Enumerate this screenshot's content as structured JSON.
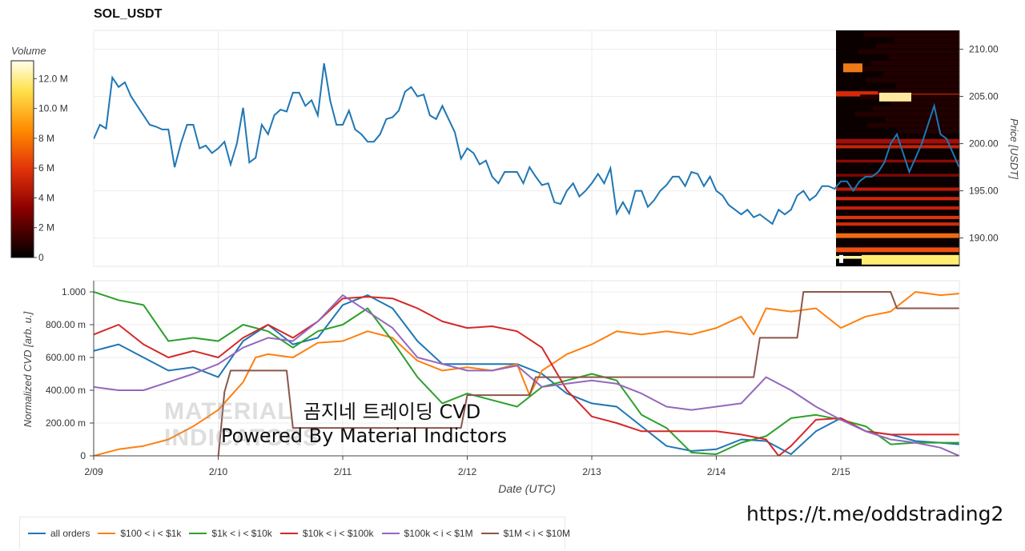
{
  "title": "SOL_USDT",
  "colorbar": {
    "label": "Volume",
    "ticks": [
      {
        "label": "12.0 M",
        "value": 12
      },
      {
        "label": "10.0 M",
        "value": 10
      },
      {
        "label": "8 M",
        "value": 8
      },
      {
        "label": "6 M",
        "value": 6
      },
      {
        "label": "4 M",
        "value": 4
      },
      {
        "label": "2 M",
        "value": 2
      },
      {
        "label": "0",
        "value": 0
      }
    ],
    "range": [
      0,
      13.2
    ]
  },
  "watermark": {
    "line1": "곰지네 트레이딩 CVD",
    "line2": "Powered By Material Indictors",
    "brand_line1": "MATERIAL",
    "brand_line2": "INDICATORS"
  },
  "link": "https://t.me/oddstrading2",
  "colors": {
    "all_orders": "#1f77b4",
    "s100_1k": "#ff7f0e",
    "s1k_10k": "#2ca02c",
    "s10k_100k": "#d62728",
    "s100k_1m": "#9467bd",
    "s1m_10m": "#8c564b"
  },
  "chart_data": [
    {
      "type": "line",
      "ylabel": "Price [USDT]",
      "ylim": [
        187,
        212
      ],
      "y_ticks": [
        "190.00",
        "195.00",
        "200.00",
        "205.00",
        "210.00"
      ],
      "y_tick_values": [
        190,
        195,
        200,
        205,
        210
      ],
      "x_day_range": [
        9,
        16
      ],
      "series": [
        {
          "x": [
            9.0,
            9.05,
            9.1,
            9.15,
            9.2,
            9.25,
            9.3,
            9.35,
            9.4,
            9.45,
            9.5,
            9.55,
            9.6,
            9.65,
            9.7,
            9.75,
            9.8,
            9.85,
            9.9,
            9.95,
            10.0,
            10.05,
            10.1,
            10.15,
            10.2,
            10.25,
            10.3,
            10.35,
            10.4,
            10.45,
            10.5,
            10.55,
            10.6,
            10.65,
            10.7,
            10.75,
            10.8,
            10.85,
            10.9,
            10.95,
            11.0,
            11.05,
            11.1,
            11.15,
            11.2,
            11.25,
            11.3,
            11.35,
            11.4,
            11.45,
            11.5,
            11.55,
            11.6,
            11.65,
            11.7,
            11.75,
            11.8,
            11.85,
            11.9,
            11.95,
            12.0,
            12.05,
            12.1,
            12.15,
            12.2,
            12.25,
            12.3,
            12.35,
            12.4,
            12.45,
            12.5,
            12.55,
            12.6,
            12.65,
            12.7,
            12.75,
            12.8,
            12.85,
            12.9,
            12.95,
            13.0,
            13.05,
            13.1,
            13.15,
            13.2,
            13.25,
            13.3,
            13.35,
            13.4,
            13.45,
            13.5,
            13.55,
            13.6,
            13.65,
            13.7,
            13.75,
            13.8,
            13.85,
            13.9,
            13.95,
            14.0,
            14.05,
            14.1,
            14.15,
            14.2,
            14.25,
            14.3,
            14.35,
            14.4,
            14.45,
            14.5,
            14.55,
            14.6,
            14.65,
            14.7,
            14.75,
            14.8,
            14.85,
            14.9,
            14.95,
            15.0,
            15.05,
            15.1,
            15.15,
            15.2,
            15.25,
            15.3,
            15.35,
            15.4,
            15.45,
            15.5,
            15.55,
            15.6,
            15.65,
            15.7,
            15.75,
            15.8,
            15.85,
            15.9,
            15.95
          ],
          "y": [
            200.5,
            202.0,
            201.6,
            207.0,
            206.0,
            206.5,
            205.0,
            204.0,
            203.0,
            202.0,
            201.8,
            201.5,
            201.5,
            197.5,
            200.0,
            202.0,
            202.0,
            199.5,
            199.8,
            199.0,
            199.5,
            200.2,
            197.8,
            200.0,
            203.8,
            198.0,
            198.5,
            202.0,
            201.0,
            203.0,
            203.6,
            203.4,
            205.4,
            205.4,
            204.0,
            204.6,
            203.0,
            208.5,
            204.5,
            202.0,
            202.0,
            203.5,
            201.5,
            201.0,
            200.2,
            200.2,
            201.0,
            202.6,
            202.8,
            203.5,
            205.5,
            206.0,
            205.0,
            205.2,
            203.0,
            202.6,
            204.0,
            202.6,
            201.2,
            198.4,
            199.5,
            199.0,
            197.8,
            198.2,
            196.5,
            195.8,
            197.0,
            197.0,
            197.0,
            195.8,
            197.5,
            196.5,
            195.6,
            195.8,
            193.8,
            193.6,
            195.0,
            195.8,
            194.4,
            195.0,
            195.8,
            196.8,
            195.8,
            197.4,
            192.6,
            193.8,
            192.6,
            195.0,
            195.0,
            193.3,
            194.0,
            195.0,
            195.6,
            196.5,
            196.5,
            195.5,
            197.0,
            196.8,
            195.5,
            196.5,
            195.0,
            194.5,
            193.5,
            193.0,
            192.5,
            193.0,
            192.2,
            192.5,
            192.0,
            191.5,
            193.0,
            192.5,
            193.0,
            194.5,
            195.0,
            194.0,
            194.5,
            195.5,
            195.5,
            195.2,
            196.0,
            196.0,
            195.0,
            196.0,
            196.5,
            196.5,
            197.0,
            198.0,
            200.0,
            201.0,
            199.0,
            197.0,
            198.5,
            200.0,
            202.0,
            204.0,
            201.0,
            200.5,
            199.0,
            197.5
          ],
          "color": "#1f77b4"
        }
      ]
    },
    {
      "type": "line",
      "ylabel": "Normalized CVD [arb. u.]",
      "xlabel": "Date (UTC)",
      "ylim": [
        0,
        1000
      ],
      "y_ticks": [
        "0",
        "200.00 m",
        "400.00 m",
        "600.00 m",
        "800.00 m",
        "1.000"
      ],
      "y_tick_values": [
        0,
        200,
        400,
        600,
        800,
        1000
      ],
      "x_ticks": [
        "2/09",
        "2/10",
        "2/11",
        "2/12",
        "2/13",
        "2/14",
        "2/15"
      ],
      "x_tick_values": [
        9,
        10,
        11,
        12,
        13,
        14,
        15
      ],
      "x_day_range": [
        9,
        16
      ],
      "legend": "bottom",
      "series": [
        {
          "name": "all orders",
          "color": "#1f77b4",
          "x": [
            9.0,
            9.2,
            9.4,
            9.6,
            9.8,
            10.0,
            10.2,
            10.4,
            10.6,
            10.8,
            11.0,
            11.2,
            11.4,
            11.6,
            11.8,
            12.0,
            12.2,
            12.4,
            12.6,
            12.8,
            13.0,
            13.2,
            13.4,
            13.6,
            13.8,
            14.0,
            14.2,
            14.4,
            14.6,
            14.8,
            15.0,
            15.2,
            15.4,
            15.6,
            15.8,
            15.95
          ],
          "y": [
            640,
            680,
            600,
            520,
            540,
            480,
            700,
            800,
            680,
            720,
            920,
            980,
            900,
            700,
            560,
            560,
            560,
            560,
            500,
            380,
            320,
            300,
            180,
            60,
            30,
            40,
            100,
            90,
            10,
            150,
            230,
            150,
            130,
            90,
            80,
            70
          ]
        },
        {
          "name": "$100 < i < $1k",
          "color": "#ff7f0e",
          "x": [
            9.0,
            9.2,
            9.4,
            9.6,
            9.8,
            10.0,
            10.2,
            10.3,
            10.4,
            10.6,
            10.8,
            11.0,
            11.2,
            11.4,
            11.6,
            11.8,
            12.0,
            12.2,
            12.4,
            12.5,
            12.6,
            12.8,
            13.0,
            13.2,
            13.4,
            13.6,
            13.8,
            14.0,
            14.2,
            14.3,
            14.4,
            14.6,
            14.8,
            15.0,
            15.2,
            15.4,
            15.6,
            15.8,
            15.95
          ],
          "y": [
            0,
            40,
            60,
            100,
            180,
            280,
            450,
            600,
            620,
            600,
            690,
            700,
            760,
            720,
            580,
            520,
            540,
            520,
            560,
            370,
            520,
            620,
            680,
            760,
            740,
            760,
            740,
            780,
            850,
            740,
            900,
            880,
            900,
            780,
            850,
            880,
            1000,
            980,
            990
          ]
        },
        {
          "name": "$1k < i < $10k",
          "color": "#2ca02c",
          "x": [
            9.0,
            9.2,
            9.4,
            9.6,
            9.8,
            10.0,
            10.2,
            10.4,
            10.6,
            10.8,
            11.0,
            11.2,
            11.4,
            11.6,
            11.8,
            12.0,
            12.2,
            12.4,
            12.6,
            12.8,
            13.0,
            13.2,
            13.4,
            13.6,
            13.8,
            14.0,
            14.2,
            14.4,
            14.6,
            14.8,
            15.0,
            15.2,
            15.4,
            15.6,
            15.8,
            15.95
          ],
          "y": [
            1000,
            950,
            920,
            700,
            720,
            700,
            800,
            760,
            660,
            760,
            800,
            900,
            700,
            480,
            320,
            380,
            340,
            300,
            420,
            460,
            500,
            460,
            250,
            170,
            20,
            10,
            80,
            120,
            230,
            250,
            220,
            180,
            70,
            80,
            80,
            80
          ]
        },
        {
          "name": "$10k < i < $100k",
          "color": "#d62728",
          "x": [
            9.0,
            9.2,
            9.4,
            9.6,
            9.8,
            10.0,
            10.2,
            10.4,
            10.6,
            10.8,
            11.0,
            11.2,
            11.4,
            11.6,
            11.8,
            12.0,
            12.2,
            12.4,
            12.6,
            12.8,
            13.0,
            13.2,
            13.4,
            13.6,
            13.8,
            14.0,
            14.2,
            14.4,
            14.5,
            14.6,
            14.8,
            15.0,
            15.2,
            15.4,
            15.6,
            15.8,
            15.95
          ],
          "y": [
            740,
            800,
            680,
            600,
            640,
            600,
            720,
            800,
            720,
            820,
            960,
            970,
            960,
            900,
            820,
            780,
            790,
            760,
            660,
            400,
            240,
            200,
            150,
            150,
            150,
            150,
            130,
            100,
            0,
            60,
            220,
            230,
            150,
            130,
            130,
            130,
            130
          ]
        },
        {
          "name": "$100k < i < $1M",
          "color": "#9467bd",
          "x": [
            9.0,
            9.2,
            9.4,
            9.6,
            9.8,
            10.0,
            10.2,
            10.4,
            10.6,
            10.8,
            11.0,
            11.2,
            11.4,
            11.6,
            11.8,
            12.0,
            12.2,
            12.4,
            12.6,
            12.8,
            13.0,
            13.2,
            13.4,
            13.6,
            13.8,
            14.0,
            14.2,
            14.4,
            14.6,
            14.8,
            15.0,
            15.2,
            15.4,
            15.6,
            15.8,
            15.95
          ],
          "y": [
            420,
            400,
            400,
            450,
            500,
            560,
            660,
            720,
            700,
            820,
            980,
            880,
            780,
            600,
            560,
            520,
            520,
            550,
            420,
            440,
            460,
            440,
            380,
            300,
            280,
            300,
            320,
            480,
            400,
            300,
            220,
            150,
            100,
            80,
            50,
            0
          ]
        },
        {
          "name": "$1M < i < $10M",
          "color": "#8c564b",
          "x": [
            9.0,
            10.0,
            10.05,
            10.1,
            10.55,
            10.6,
            11.95,
            12.0,
            12.5,
            12.55,
            13.0,
            14.3,
            14.35,
            14.65,
            14.7,
            15.4,
            15.45,
            15.95
          ],
          "y": [
            -10,
            -10,
            390,
            520,
            520,
            170,
            170,
            370,
            370,
            480,
            480,
            480,
            720,
            720,
            1000,
            1000,
            900,
            900
          ]
        }
      ]
    }
  ]
}
